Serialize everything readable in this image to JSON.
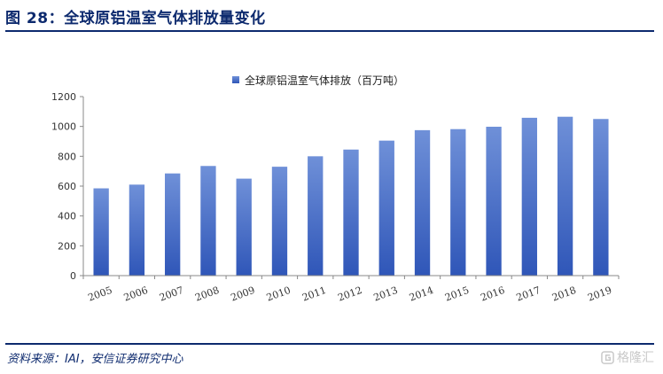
{
  "figure": {
    "title": "图 28：全球原铝温室气体排放量变化",
    "source": "资料来源：IAI，安信证券研究中心"
  },
  "watermark": {
    "icon": "gelonghui-logo-icon",
    "text": "格隆汇"
  },
  "colors": {
    "title": "#0d2a6e",
    "bar_top": "#6f90d8",
    "bar_bottom": "#2f56b8",
    "axis": "#888888"
  },
  "chart_data": {
    "type": "bar",
    "categories": [
      "2005",
      "2006",
      "2007",
      "2008",
      "2009",
      "2010",
      "2011",
      "2012",
      "2013",
      "2014",
      "2015",
      "2016",
      "2017",
      "2018",
      "2019"
    ],
    "series": [
      {
        "name": "全球原铝温室气体排放（百万吨）",
        "values": [
          585,
          610,
          685,
          735,
          650,
          730,
          800,
          845,
          905,
          975,
          982,
          998,
          1058,
          1065,
          1050
        ]
      }
    ],
    "y_ticks": [
      "0",
      "200",
      "400",
      "600",
      "800",
      "1000",
      "1200"
    ],
    "ylim": [
      0,
      1200
    ],
    "grid": false,
    "legend_position": "top-center",
    "xlabel": "",
    "ylabel": ""
  }
}
